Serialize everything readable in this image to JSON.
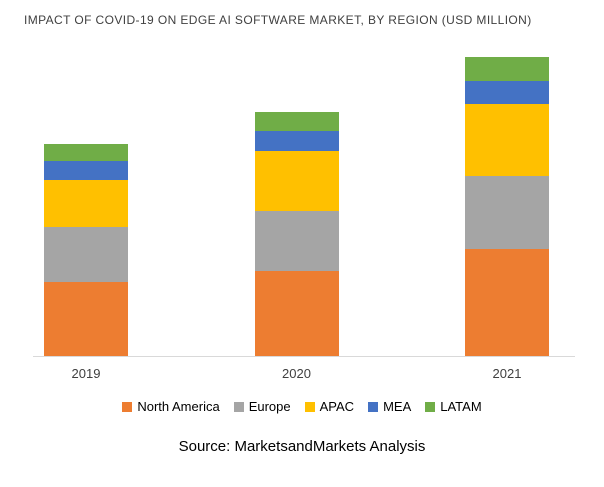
{
  "title": "IMPACT OF COVID-19 ON EDGE AI SOFTWARE MARKET, BY REGION (USD MILLION)",
  "source": "Source: MarketsandMarkets Analysis",
  "chart_data": {
    "type": "bar",
    "stacked": true,
    "title": "IMPACT OF COVID-19 ON EDGE AI SOFTWARE MARKET, BY REGION (USD MILLION)",
    "xlabel": "",
    "ylabel": "USD Million",
    "ylim": [
      0,
      300
    ],
    "grid": false,
    "legend_position": "bottom",
    "categories": [
      "2019",
      "2020",
      "2021"
    ],
    "series": [
      {
        "name": "North America",
        "color": "#ED7D31",
        "values": [
          74,
          85,
          107
        ]
      },
      {
        "name": "Europe",
        "color": "#A5A5A5",
        "values": [
          55,
          60,
          73
        ]
      },
      {
        "name": "APAC",
        "color": "#FFC000",
        "values": [
          47,
          60,
          72
        ]
      },
      {
        "name": "MEA",
        "color": "#4472C4",
        "values": [
          19,
          20,
          23
        ]
      },
      {
        "name": "LATAM",
        "color": "#70AD47",
        "values": [
          17,
          19,
          24
        ]
      }
    ]
  }
}
